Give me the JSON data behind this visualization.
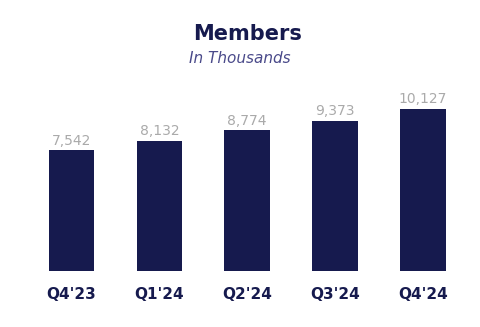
{
  "title": "Members",
  "subtitle": "In Thousands",
  "categories": [
    "Q4'23",
    "Q1'24",
    "Q2'24",
    "Q3'24",
    "Q4'24"
  ],
  "values": [
    7542,
    8132,
    8774,
    9373,
    10127
  ],
  "bar_color": "#161a4e",
  "value_labels": [
    "7,542",
    "8,132",
    "8,774",
    "9,373",
    "10,127"
  ],
  "label_color": "#aaaaaa",
  "title_color": "#161a4e",
  "subtitle_color": "#4a4a8a",
  "xlabel_color": "#161a4e",
  "background_color": "#ffffff",
  "title_fontsize": 15,
  "subtitle_fontsize": 11,
  "value_fontsize": 10,
  "xlabel_fontsize": 11,
  "ylim": [
    0,
    12000
  ],
  "bar_width": 0.52
}
